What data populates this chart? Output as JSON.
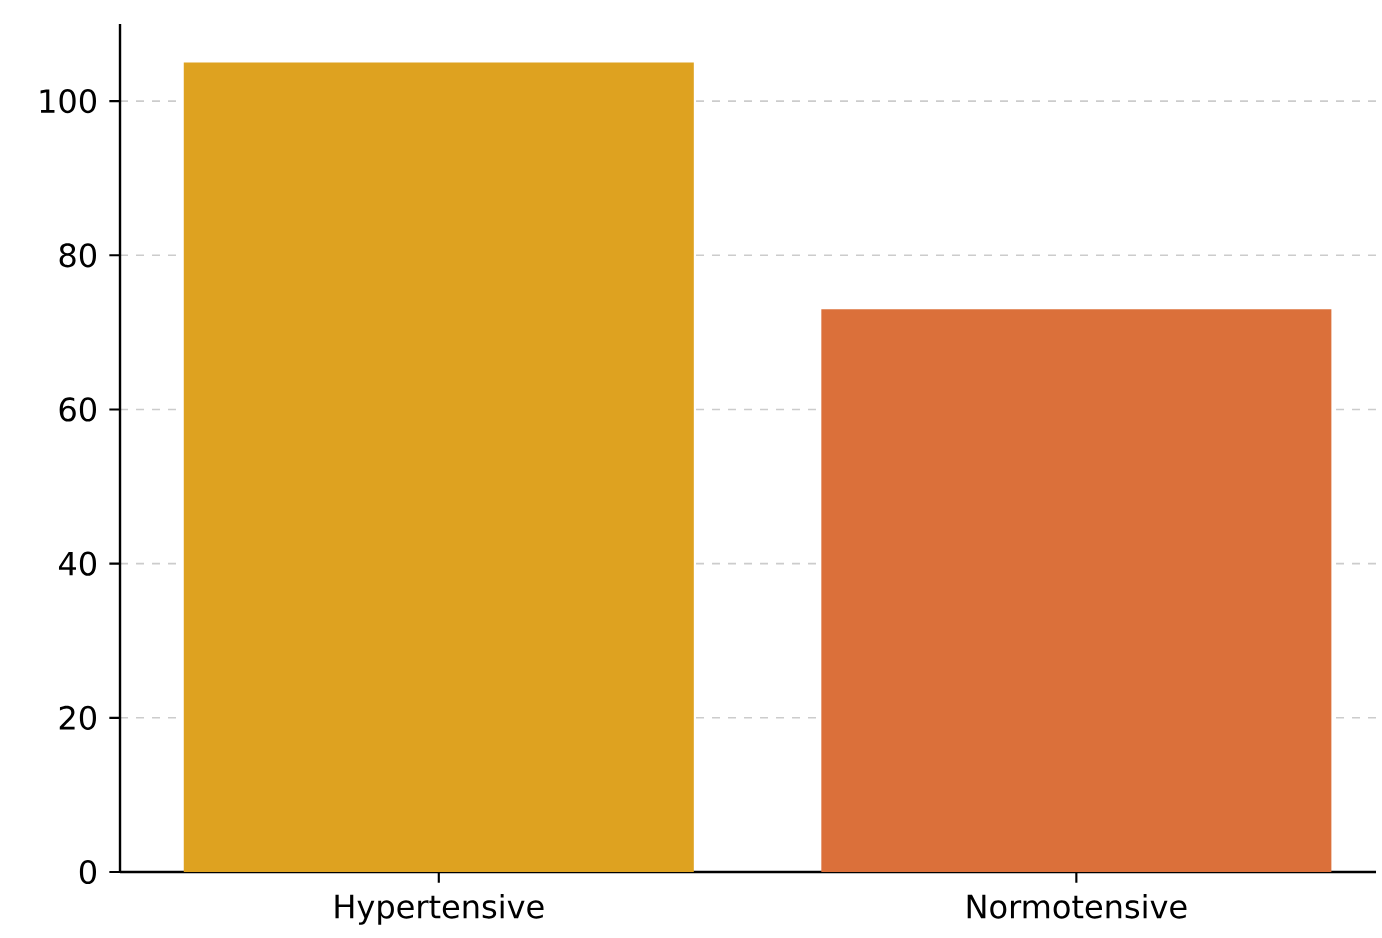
{
  "chart_data": {
    "type": "bar",
    "categories": [
      "Hypertensive",
      "Normotensive"
    ],
    "values": [
      105,
      73
    ],
    "colors": [
      "#dea220",
      "#db703a"
    ],
    "ylim": [
      0,
      110
    ],
    "yticks": [
      0,
      20,
      40,
      60,
      80,
      100
    ],
    "grid": "y"
  }
}
